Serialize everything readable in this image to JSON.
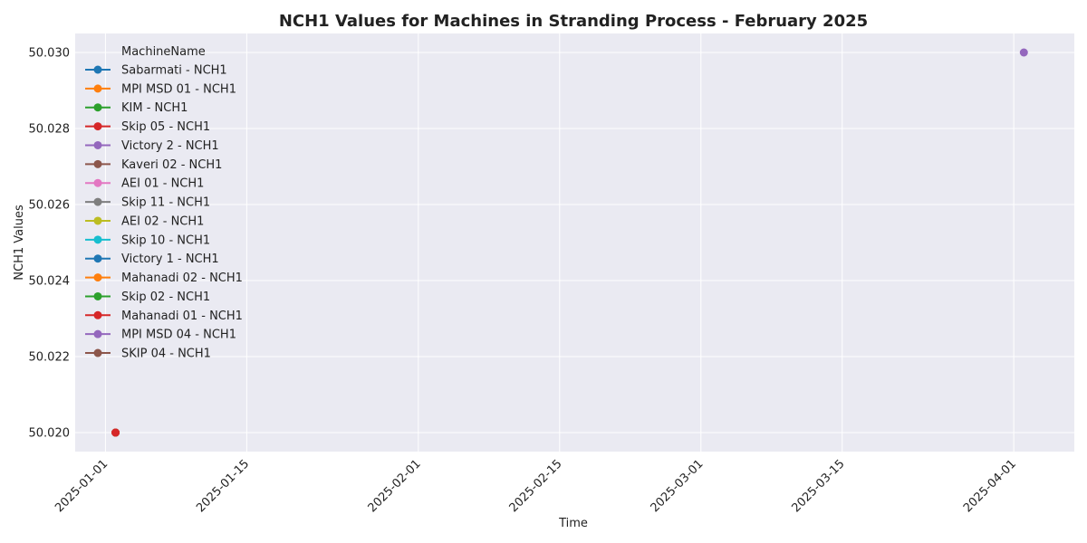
{
  "chart_data": {
    "type": "line",
    "title": "NCH1 Values for Machines in Stranding Process - February 2025",
    "xlabel": "Time",
    "ylabel": "NCH1 Values",
    "x_type": "date",
    "xlim": [
      "2024-12-29",
      "2025-04-07"
    ],
    "ylim": [
      50.0195,
      50.0305
    ],
    "x_ticks": [
      "2025-01-01",
      "2025-01-15",
      "2025-02-01",
      "2025-02-15",
      "2025-03-01",
      "2025-03-15",
      "2025-04-01"
    ],
    "y_ticks": [
      50.02,
      50.022,
      50.024,
      50.026,
      50.028,
      50.03
    ],
    "y_tick_labels": [
      "50.020",
      "50.022",
      "50.024",
      "50.026",
      "50.028",
      "50.030"
    ],
    "grid": true,
    "legend_title": "MachineName",
    "legend_position": "top-left",
    "background": "#eaeaf2",
    "series": [
      {
        "name": "Sabarmati - NCH1",
        "color": "#1f77b4",
        "points": [
          {
            "x": "2025-01-02",
            "y": 50.02
          }
        ]
      },
      {
        "name": "MPI MSD 01 - NCH1",
        "color": "#ff7f0e",
        "points": [
          {
            "x": "2025-01-02",
            "y": 50.02
          }
        ]
      },
      {
        "name": "KIM - NCH1",
        "color": "#2ca02c",
        "points": [
          {
            "x": "2025-01-02",
            "y": 50.02
          }
        ]
      },
      {
        "name": "Skip 05 - NCH1",
        "color": "#d62728",
        "points": [
          {
            "x": "2025-01-02",
            "y": 50.02
          }
        ]
      },
      {
        "name": "Victory 2 - NCH1",
        "color": "#9467bd",
        "points": []
      },
      {
        "name": "Kaveri 02 - NCH1",
        "color": "#8c564b",
        "points": []
      },
      {
        "name": "AEI 01 - NCH1",
        "color": "#e377c2",
        "points": []
      },
      {
        "name": "Skip 11 - NCH1",
        "color": "#7f7f7f",
        "points": []
      },
      {
        "name": "AEI 02 - NCH1",
        "color": "#bcbd22",
        "points": []
      },
      {
        "name": "Skip 10 - NCH1",
        "color": "#17becf",
        "points": []
      },
      {
        "name": "Victory 1 - NCH1",
        "color": "#1f77b4",
        "points": []
      },
      {
        "name": "Mahanadi 02 - NCH1",
        "color": "#ff7f0e",
        "points": []
      },
      {
        "name": "Skip 02 - NCH1",
        "color": "#2ca02c",
        "points": []
      },
      {
        "name": "Mahanadi 01 - NCH1",
        "color": "#d62728",
        "points": [
          {
            "x": "2025-01-02",
            "y": 50.02
          }
        ]
      },
      {
        "name": "MPI MSD 04 - NCH1",
        "color": "#9467bd",
        "points": [
          {
            "x": "2025-04-02",
            "y": 50.03
          }
        ]
      },
      {
        "name": "SKIP 04 - NCH1",
        "color": "#8c564b",
        "points": []
      }
    ]
  }
}
